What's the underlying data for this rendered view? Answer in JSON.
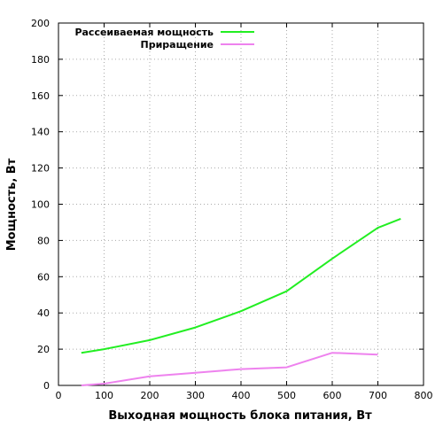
{
  "chart_data": {
    "type": "line",
    "title": "",
    "xlabel": "Выходная мощность блока питания, Вт",
    "ylabel": "Мощность, Вт",
    "xlim": [
      0,
      800
    ],
    "ylim": [
      0,
      200
    ],
    "xticks": [
      0,
      100,
      200,
      300,
      400,
      500,
      600,
      700,
      800
    ],
    "yticks": [
      0,
      20,
      40,
      60,
      80,
      100,
      120,
      140,
      160,
      180,
      200
    ],
    "grid": true,
    "legend_position": "top-left",
    "series": [
      {
        "name": "Рассеиваемая мощность",
        "color": "#22ee22",
        "x": [
          50,
          100,
          200,
          300,
          400,
          500,
          600,
          700,
          750
        ],
        "y": [
          18,
          20,
          25,
          32,
          41,
          52,
          70,
          87,
          92
        ]
      },
      {
        "name": "Приращение",
        "color": "#ee82ee",
        "x": [
          50,
          100,
          200,
          300,
          400,
          500,
          600,
          700
        ],
        "y": [
          0,
          1,
          5,
          7,
          9,
          10,
          18,
          17
        ]
      }
    ]
  }
}
